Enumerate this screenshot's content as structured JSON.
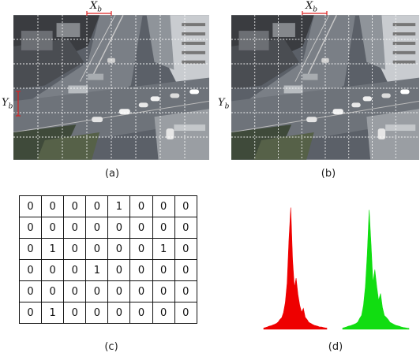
{
  "panels": {
    "a": {
      "caption": "(a)",
      "x_label": "X",
      "x_sub": "b",
      "y_label": "Y",
      "y_sub": "b"
    },
    "b": {
      "caption": "(b)",
      "x_label": "X",
      "x_sub": "b",
      "y_label": "Y",
      "y_sub": "b"
    },
    "c": {
      "caption": "(c)",
      "matrix": [
        [
          "0",
          "0",
          "0",
          "0",
          "1",
          "0",
          "0",
          "0"
        ],
        [
          "0",
          "0",
          "0",
          "0",
          "0",
          "0",
          "0",
          "0"
        ],
        [
          "0",
          "1",
          "0",
          "0",
          "0",
          "0",
          "1",
          "0"
        ],
        [
          "0",
          "0",
          "0",
          "1",
          "0",
          "0",
          "0",
          "0"
        ],
        [
          "0",
          "0",
          "0",
          "0",
          "0",
          "0",
          "0",
          "0"
        ],
        [
          "0",
          "1",
          "0",
          "0",
          "0",
          "0",
          "0",
          "0"
        ]
      ]
    },
    "d": {
      "caption": "(d)"
    }
  },
  "colors": {
    "red_hist": "#ee0000",
    "green_hist": "#11dd11",
    "marker": "#dd2222",
    "grid_lines": "#ffffff"
  },
  "histograms": {
    "red": [
      0.01,
      0.015,
      0.02,
      0.025,
      0.03,
      0.035,
      0.04,
      0.05,
      0.06,
      0.08,
      0.1,
      0.14,
      0.22,
      0.4,
      0.75,
      1.0,
      0.6,
      0.35,
      0.42,
      0.3,
      0.2,
      0.14,
      0.18,
      0.1,
      0.08,
      0.06,
      0.05,
      0.04,
      0.035,
      0.03,
      0.025,
      0.02,
      0.02,
      0.015,
      0.012,
      0.01
    ],
    "green": [
      0.01,
      0.015,
      0.02,
      0.025,
      0.03,
      0.035,
      0.04,
      0.05,
      0.06,
      0.09,
      0.12,
      0.2,
      0.35,
      0.65,
      1.0,
      0.7,
      0.4,
      0.5,
      0.35,
      0.25,
      0.3,
      0.18,
      0.12,
      0.1,
      0.08,
      0.06,
      0.05,
      0.04,
      0.035,
      0.03,
      0.025,
      0.02,
      0.015,
      0.012,
      0.01,
      0.008
    ]
  }
}
